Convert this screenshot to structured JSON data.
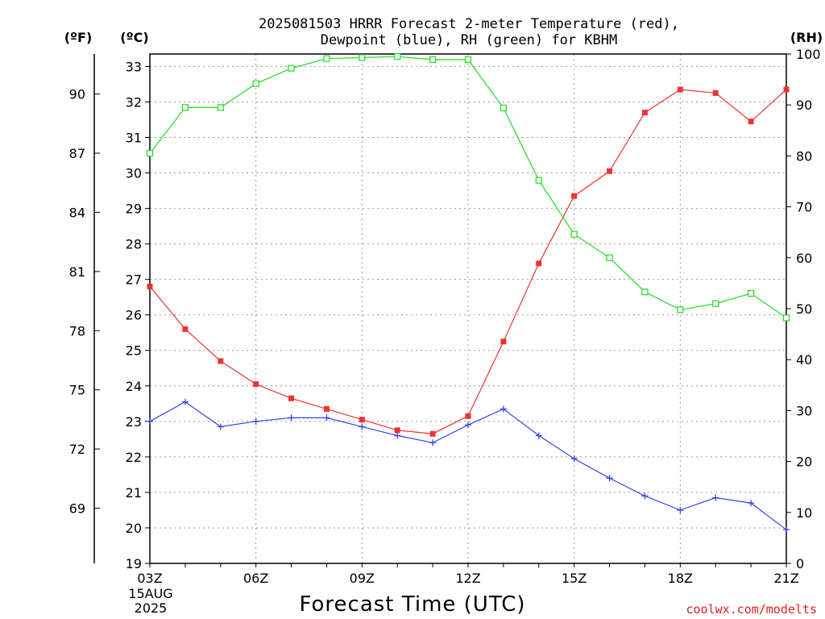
{
  "chart_data": {
    "type": "line",
    "title": "2025081503 HRRR Forecast 2-meter Temperature (red),",
    "subtitle": "Dewpoint (blue), RH (green) for KBHM",
    "xlabel": "Forecast Time (UTC)",
    "y_left_outer_label": "(ºF)",
    "y_left_label": "(ºC)",
    "y_right_label": "(RH)",
    "x": [
      3,
      4,
      5,
      6,
      7,
      8,
      9,
      10,
      11,
      12,
      13,
      14,
      15,
      16,
      17,
      18,
      19,
      20,
      21
    ],
    "xlim": [
      3,
      21
    ],
    "x_ticks": [
      {
        "value": 3,
        "label": "03Z"
      },
      {
        "value": 6,
        "label": "06Z"
      },
      {
        "value": 9,
        "label": "09Z"
      },
      {
        "value": 12,
        "label": "12Z"
      },
      {
        "value": 15,
        "label": "15Z"
      },
      {
        "value": 18,
        "label": "18Z"
      },
      {
        "value": 21,
        "label": "21Z"
      }
    ],
    "x_date_lines": [
      "15AUG",
      "2025"
    ],
    "ylim_c": [
      19,
      33.35
    ],
    "y_ticks_c": [
      19,
      20,
      21,
      22,
      23,
      24,
      25,
      26,
      27,
      28,
      29,
      30,
      31,
      32,
      33
    ],
    "y_ticks_f": [
      69,
      72,
      75,
      78,
      81,
      84,
      87,
      90
    ],
    "ylim_rh": [
      0,
      100
    ],
    "y_ticks_rh": [
      0,
      10,
      20,
      30,
      40,
      50,
      60,
      70,
      80,
      90,
      100
    ],
    "series": [
      {
        "key": "temperature",
        "units": "C",
        "axis": "left",
        "color": "#ee3333",
        "marker": "filled-square",
        "values": [
          26.8,
          25.6,
          24.7,
          24.05,
          23.65,
          23.35,
          23.05,
          22.75,
          22.65,
          23.15,
          25.25,
          27.45,
          29.35,
          30.05,
          31.7,
          32.35,
          32.25,
          31.45,
          32.35
        ]
      },
      {
        "key": "dewpoint",
        "units": "C",
        "axis": "left",
        "color": "#3344ee",
        "marker": "plus",
        "values": [
          23.0,
          23.55,
          22.85,
          23.0,
          23.1,
          23.1,
          22.85,
          22.6,
          22.4,
          22.9,
          23.35,
          22.6,
          21.95,
          21.4,
          20.9,
          20.5,
          20.85,
          20.7,
          19.95
        ]
      },
      {
        "key": "rh",
        "units": "%",
        "axis": "right",
        "color": "#22dd22",
        "marker": "open-square",
        "values": [
          80.5,
          89.5,
          89.5,
          94.2,
          97.2,
          99.1,
          99.3,
          99.5,
          98.9,
          98.9,
          89.4,
          75.2,
          64.6,
          60.0,
          53.3,
          49.8,
          51.0,
          53.0,
          48.2
        ]
      }
    ]
  },
  "credit": "coolwx.com/modelts"
}
